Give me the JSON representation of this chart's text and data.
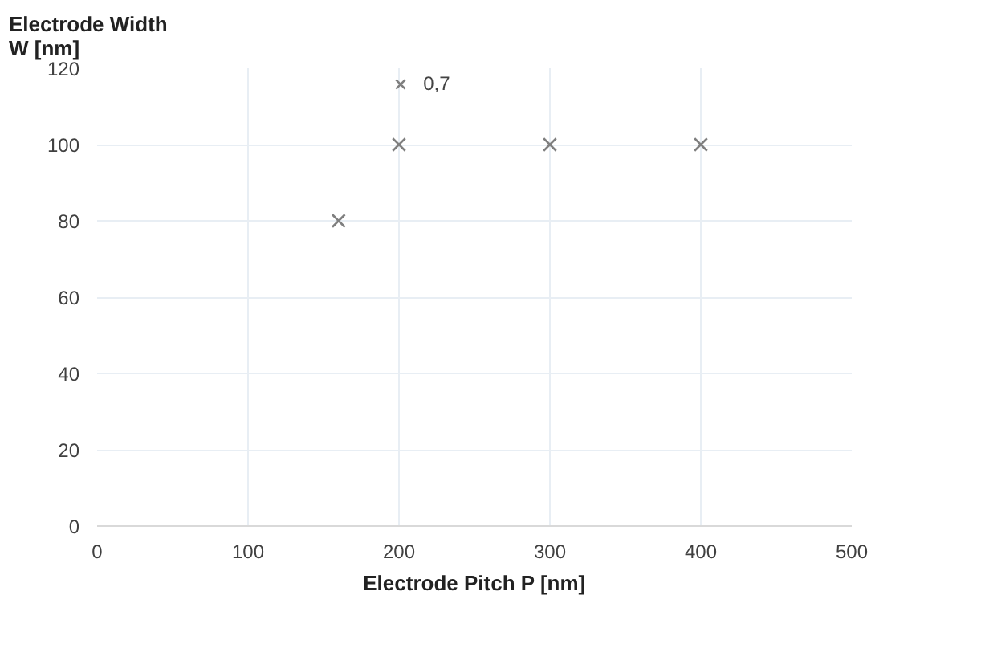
{
  "chart_data": {
    "type": "scatter",
    "xlabel": "Electrode Pitch P [nm]",
    "ylabel": "Electrode Width\nW [nm]",
    "x": [
      160,
      200,
      300,
      400
    ],
    "series": [
      {
        "name": "0,7",
        "color": "#7f7f7f",
        "values": [
          80,
          100,
          100,
          100
        ]
      }
    ],
    "xlim": [
      0,
      500
    ],
    "ylim": [
      0,
      120
    ],
    "xticks": [
      0,
      100,
      200,
      300,
      400,
      500
    ],
    "yticks": [
      0,
      20,
      40,
      60,
      80,
      100,
      120
    ],
    "grid": true,
    "legend": "top",
    "marker": "cross"
  }
}
